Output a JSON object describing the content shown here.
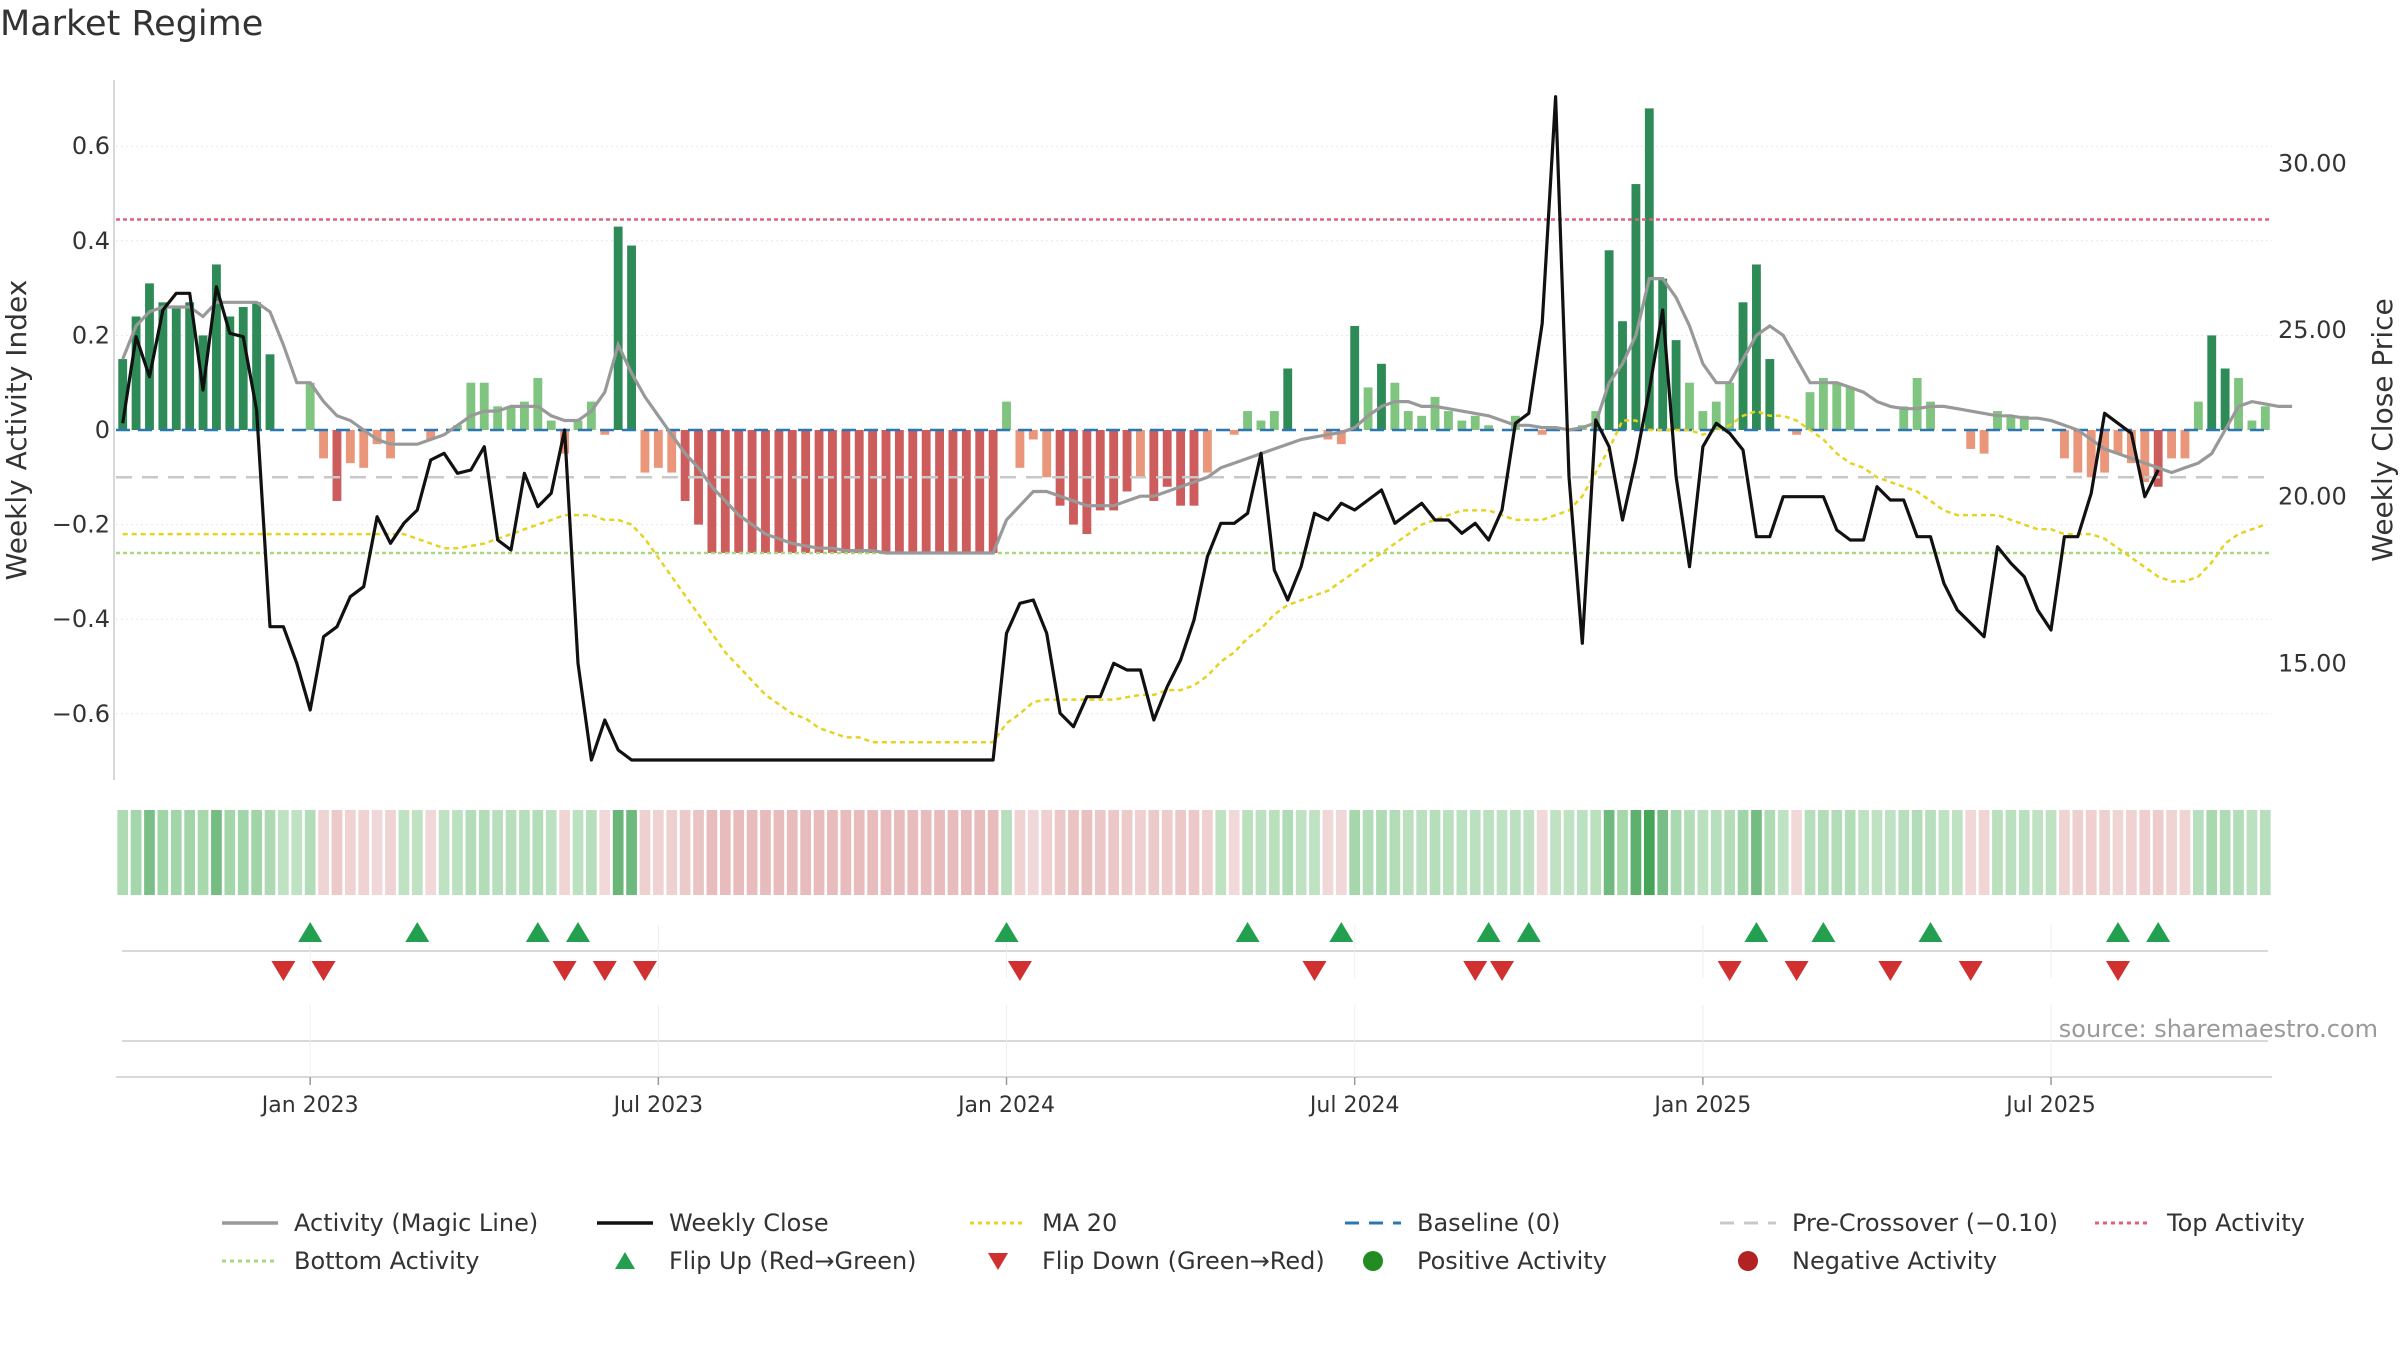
{
  "title": "Market Regime",
  "source": "source: sharemaestro.com",
  "colors": {
    "pos_strong": "#2e8b57",
    "pos_weak": "#7fc47f",
    "neg_strong": "#cd5c5c",
    "neg_weak": "#e9967a",
    "magic": "#999999",
    "close": "#111111",
    "ma20": "#e6d320",
    "baseline": "#2a77b4",
    "precross": "#c8c8c8",
    "top": "#e06080",
    "bottom": "#a8d880",
    "flip_up": "#22a050",
    "flip_down": "#d03030",
    "positive": "#228b22",
    "negative": "#b22222"
  },
  "chart_data": {
    "type": "bar",
    "title": "Market Regime",
    "ylabel_left": "Weekly Activity Index",
    "ylabel_right": "Weekly Close Price",
    "ylim_left": [
      -0.74,
      0.74
    ],
    "ylim_right": [
      11.5,
      32.5
    ],
    "left_ticks": [
      0.6,
      0.4,
      0.2,
      0,
      -0.2,
      -0.4,
      -0.6
    ],
    "left_tick_labels": [
      "0.6",
      "0.4",
      "0.2",
      "0",
      "−0.2",
      "−0.4",
      "−0.6"
    ],
    "right_ticks": [
      30,
      25,
      20,
      15
    ],
    "right_tick_labels": [
      "30.00",
      "25.00",
      "20.00",
      "15.00"
    ],
    "x_ticks": [
      {
        "week": 14.5,
        "label": "Jan 2023"
      },
      {
        "week": 40.5,
        "label": "Jul 2023"
      },
      {
        "week": 66.5,
        "label": "Jan 2024"
      },
      {
        "week": 92.5,
        "label": "Jul 2024"
      },
      {
        "week": 118.5,
        "label": "Jan 2025"
      },
      {
        "week": 144.5,
        "label": "Jul 2025"
      }
    ],
    "reference_lines": {
      "baseline": 0,
      "pre_crossover": -0.1,
      "top_activity": 0.445,
      "bottom_activity": -0.26
    },
    "activity": [
      0.15,
      0.24,
      0.31,
      0.27,
      0.26,
      0.27,
      0.2,
      0.35,
      0.24,
      0.26,
      0.27,
      0.16,
      0,
      0,
      0.1,
      -0.06,
      -0.15,
      -0.07,
      -0.08,
      -0.03,
      -0.06,
      0,
      0,
      -0.02,
      0,
      0.01,
      0.1,
      0.1,
      0.05,
      0.05,
      0.06,
      0.11,
      0.02,
      -0.05,
      0.02,
      0.06,
      -0.01,
      0.43,
      0.39,
      -0.09,
      -0.08,
      -0.09,
      -0.15,
      -0.2,
      -0.26,
      -0.26,
      -0.26,
      -0.26,
      -0.26,
      -0.26,
      -0.26,
      -0.26,
      -0.26,
      -0.26,
      -0.26,
      -0.26,
      -0.26,
      -0.26,
      -0.26,
      -0.26,
      -0.26,
      -0.26,
      -0.26,
      -0.26,
      -0.26,
      -0.26,
      0.06,
      -0.08,
      -0.02,
      -0.1,
      -0.16,
      -0.2,
      -0.22,
      -0.17,
      -0.17,
      -0.13,
      -0.1,
      -0.15,
      -0.12,
      -0.16,
      -0.16,
      -0.09,
      0,
      -0.01,
      0.04,
      0.02,
      0.04,
      0.13,
      0,
      0,
      -0.02,
      -0.03,
      0.22,
      0.09,
      0.14,
      0.1,
      0.04,
      0.03,
      0.07,
      0.04,
      0.02,
      0.03,
      0.01,
      0,
      0.03,
      0,
      -0.01,
      0,
      0,
      0.01,
      0.04,
      0.38,
      0.23,
      0.52,
      0.68,
      0.32,
      0.19,
      0.1,
      0.04,
      0.06,
      0.1,
      0.27,
      0.35,
      0.15,
      0,
      -0.01,
      0.08,
      0.11,
      0.1,
      0.09,
      0,
      0,
      0,
      0.05,
      0.11,
      0.06,
      0,
      0,
      -0.04,
      -0.05,
      0.04,
      0.03,
      0.03,
      0,
      0,
      -0.06,
      -0.09,
      -0.1,
      -0.09,
      -0.05,
      -0.07,
      -0.11,
      -0.12,
      -0.06,
      -0.06,
      0.06,
      0.2,
      0.13,
      0.11,
      0.02,
      0.05
    ],
    "magic_line": [
      0.15,
      0.22,
      0.25,
      0.26,
      0.26,
      0.26,
      0.24,
      0.27,
      0.27,
      0.27,
      0.27,
      0.25,
      0.18,
      0.1,
      0.1,
      0.06,
      0.03,
      0.02,
      0,
      -0.02,
      -0.03,
      -0.03,
      -0.03,
      -0.02,
      -0.01,
      0.01,
      0.03,
      0.04,
      0.04,
      0.05,
      0.05,
      0.05,
      0.03,
      0.02,
      0.02,
      0.04,
      0.08,
      0.18,
      0.12,
      0.07,
      0.03,
      -0.01,
      -0.05,
      -0.08,
      -0.12,
      -0.15,
      -0.18,
      -0.2,
      -0.22,
      -0.23,
      -0.24,
      -0.245,
      -0.25,
      -0.25,
      -0.255,
      -0.255,
      -0.255,
      -0.26,
      -0.26,
      -0.26,
      -0.26,
      -0.26,
      -0.26,
      -0.26,
      -0.26,
      -0.26,
      -0.19,
      -0.16,
      -0.13,
      -0.13,
      -0.14,
      -0.15,
      -0.16,
      -0.16,
      -0.16,
      -0.15,
      -0.14,
      -0.14,
      -0.13,
      -0.12,
      -0.11,
      -0.1,
      -0.08,
      -0.07,
      -0.06,
      -0.05,
      -0.04,
      -0.03,
      -0.02,
      -0.015,
      -0.01,
      -0.005,
      0.005,
      0.03,
      0.05,
      0.06,
      0.06,
      0.05,
      0.05,
      0.045,
      0.04,
      0.035,
      0.03,
      0.02,
      0.01,
      0.01,
      0.005,
      0.005,
      0,
      0.005,
      0.015,
      0.1,
      0.14,
      0.2,
      0.32,
      0.32,
      0.28,
      0.22,
      0.14,
      0.1,
      0.1,
      0.15,
      0.2,
      0.22,
      0.2,
      0.15,
      0.1,
      0.1,
      0.1,
      0.09,
      0.08,
      0.06,
      0.05,
      0.045,
      0.045,
      0.05,
      0.05,
      0.045,
      0.04,
      0.035,
      0.03,
      0.03,
      0.025,
      0.025,
      0.02,
      0.01,
      0,
      -0.02,
      -0.04,
      -0.05,
      -0.06,
      -0.07,
      -0.08,
      -0.09,
      -0.08,
      -0.07,
      -0.05,
      0,
      0.05,
      0.06,
      0.055,
      0.05,
      0.05
    ],
    "ma20": [
      -0.22,
      -0.22,
      -0.22,
      -0.22,
      -0.22,
      -0.22,
      -0.22,
      -0.22,
      -0.22,
      -0.22,
      -0.22,
      -0.22,
      -0.22,
      -0.22,
      -0.22,
      -0.22,
      -0.22,
      -0.22,
      -0.22,
      -0.22,
      -0.22,
      -0.22,
      -0.23,
      -0.24,
      -0.25,
      -0.25,
      -0.245,
      -0.24,
      -0.23,
      -0.22,
      -0.21,
      -0.2,
      -0.19,
      -0.18,
      -0.18,
      -0.18,
      -0.19,
      -0.19,
      -0.2,
      -0.23,
      -0.27,
      -0.31,
      -0.35,
      -0.39,
      -0.43,
      -0.47,
      -0.5,
      -0.53,
      -0.56,
      -0.58,
      -0.6,
      -0.61,
      -0.63,
      -0.64,
      -0.65,
      -0.65,
      -0.66,
      -0.66,
      -0.66,
      -0.66,
      -0.66,
      -0.66,
      -0.66,
      -0.66,
      -0.66,
      -0.66,
      -0.62,
      -0.6,
      -0.575,
      -0.57,
      -0.57,
      -0.57,
      -0.57,
      -0.57,
      -0.57,
      -0.565,
      -0.56,
      -0.56,
      -0.55,
      -0.55,
      -0.54,
      -0.52,
      -0.49,
      -0.47,
      -0.44,
      -0.42,
      -0.39,
      -0.37,
      -0.36,
      -0.35,
      -0.34,
      -0.32,
      -0.3,
      -0.28,
      -0.26,
      -0.24,
      -0.22,
      -0.2,
      -0.19,
      -0.18,
      -0.17,
      -0.17,
      -0.17,
      -0.18,
      -0.19,
      -0.19,
      -0.19,
      -0.18,
      -0.17,
      -0.14,
      -0.09,
      -0.04,
      0.02,
      0.02,
      0,
      0,
      0,
      0,
      -0.01,
      0,
      0.01,
      0.03,
      0.04,
      0.03,
      0.03,
      0.02,
      0.0,
      -0.02,
      -0.05,
      -0.07,
      -0.08,
      -0.1,
      -0.11,
      -0.12,
      -0.13,
      -0.15,
      -0.17,
      -0.18,
      -0.18,
      -0.18,
      -0.18,
      -0.19,
      -0.2,
      -0.21,
      -0.21,
      -0.22,
      -0.22,
      -0.22,
      -0.23,
      -0.25,
      -0.27,
      -0.29,
      -0.31,
      -0.32,
      -0.32,
      -0.31,
      -0.28,
      -0.24,
      -0.22,
      -0.21,
      -0.2
    ],
    "close": [
      22.2,
      24.8,
      23.6,
      25.6,
      26.1,
      26.1,
      23.2,
      26.3,
      24.9,
      24.8,
      22.6,
      16.1,
      16.1,
      15,
      13.6,
      15.8,
      16.1,
      17,
      17.3,
      19.4,
      18.6,
      19.2,
      19.6,
      21.1,
      21.3,
      20.7,
      20.8,
      21.5,
      18.7,
      18.4,
      20.7,
      19.7,
      20.1,
      22,
      15,
      12.1,
      13.3,
      12.4,
      12.1,
      12.1,
      12.1,
      12.1,
      12.1,
      12.1,
      12.1,
      12.1,
      12.1,
      12.1,
      12.1,
      12.1,
      12.1,
      12.1,
      12.1,
      12.1,
      12.1,
      12.1,
      12.1,
      12.1,
      12.1,
      12.1,
      12.1,
      12.1,
      12.1,
      12.1,
      12.1,
      12.1,
      15.9,
      16.8,
      16.9,
      15.9,
      13.5,
      13.1,
      14,
      14,
      15,
      14.8,
      14.8,
      13.3,
      14.3,
      15.1,
      16.3,
      18.2,
      19.2,
      19.2,
      19.5,
      21.3,
      17.8,
      16.9,
      17.9,
      19.5,
      19.3,
      19.8,
      19.6,
      19.9,
      20.2,
      19.2,
      19.5,
      19.8,
      19.3,
      19.3,
      18.9,
      19.2,
      18.7,
      19.6,
      22.2,
      22.5,
      25.2,
      32,
      20.6,
      15.6,
      22.3,
      21.5,
      19.3,
      21.1,
      23.2,
      25.6,
      20.6,
      17.9,
      21.5,
      22.2,
      21.9,
      21.4,
      18.8,
      18.8,
      20,
      20,
      20,
      20,
      19,
      18.7,
      18.7,
      20.3,
      19.9,
      19.9,
      18.8,
      18.8,
      17.4,
      16.6,
      16.2,
      15.8,
      18.5,
      18,
      17.6,
      16.6,
      16,
      18.8,
      18.8,
      20.1,
      22.5,
      22.2,
      21.9,
      20,
      20.8
    ],
    "flip_up": [
      14,
      22,
      31,
      34,
      66,
      84,
      91,
      102,
      105,
      122,
      127,
      135,
      149,
      152
    ],
    "flip_down": [
      12,
      15,
      33,
      36,
      39,
      67,
      89,
      101,
      103,
      120,
      125,
      132,
      138,
      149
    ],
    "x_axis_labels_shown": [
      "Jan 2023",
      "Jul 2023",
      "Jan 2024",
      "Jul 2024",
      "Jan 2025",
      "Jul 2025"
    ]
  },
  "legend": [
    {
      "label": "Activity (Magic Line)",
      "key": "magic",
      "swatch": "line"
    },
    {
      "label": "Weekly Close",
      "key": "close",
      "swatch": "line"
    },
    {
      "label": "MA 20",
      "key": "ma20",
      "swatch": "dotted"
    },
    {
      "label": "Baseline (0)",
      "key": "baseline",
      "swatch": "dashed"
    },
    {
      "label": "Pre-Crossover (−0.10)",
      "key": "precross",
      "swatch": "dashed"
    },
    {
      "label": "Top Activity",
      "key": "top",
      "swatch": "dotted"
    },
    {
      "label": "Bottom Activity",
      "key": "bottom",
      "swatch": "dotted"
    },
    {
      "label": "Flip Up (Red→Green)",
      "key": "flip_up",
      "swatch": "triangle-up"
    },
    {
      "label": "Flip Down (Green→Red)",
      "key": "flip_down",
      "swatch": "triangle-down"
    },
    {
      "label": "Positive Activity",
      "key": "positive",
      "swatch": "circle"
    },
    {
      "label": "Negative Activity",
      "key": "negative",
      "swatch": "circle"
    }
  ]
}
